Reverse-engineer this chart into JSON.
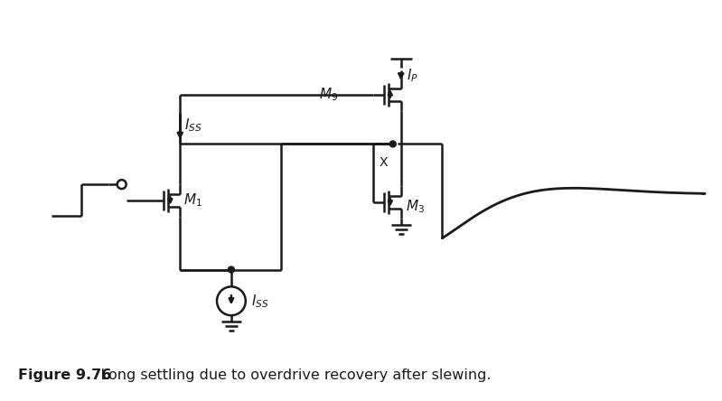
{
  "title_bold": "Figure 9.76",
  "title_rest": "   Long settling due to overdrive recovery after slewing.",
  "bg_color": "#ffffff",
  "line_color": "#1a1a1a",
  "lw": 1.8,
  "label_M1": "$\\mathit{M}_1$",
  "label_M3": "$\\mathit{M}_3$",
  "label_M9": "$\\mathit{M}_9$",
  "label_Iss_top": "$\\mathit{I}_{SS}$",
  "label_Iss_bot": "$\\mathit{I}_{SS}$",
  "label_Ip": "$\\mathit{I}_P$",
  "label_X": "X"
}
